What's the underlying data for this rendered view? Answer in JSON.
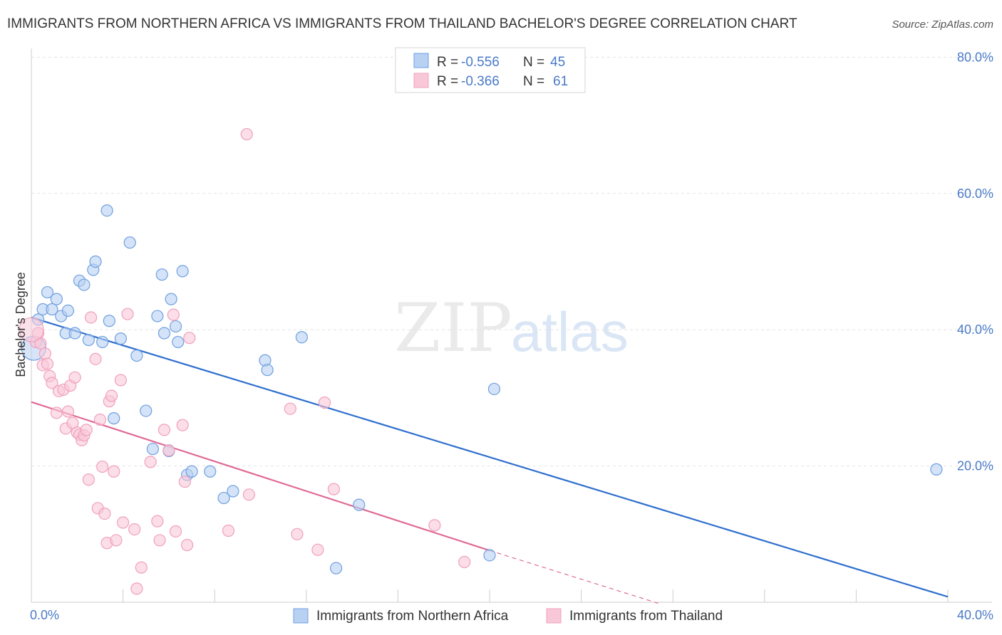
{
  "chart_data": {
    "type": "scatter",
    "title": "IMMIGRANTS FROM NORTHERN AFRICA VS IMMIGRANTS FROM THAILAND BACHELOR'S DEGREE CORRELATION CHART",
    "source": "Source: ZipAtlas.com",
    "ylabel": "Bachelor's Degree",
    "xlabel": "",
    "xlim": [
      0,
      40
    ],
    "ylim": [
      0,
      80
    ],
    "x_tick_labels": [
      "0.0%",
      "40.0%"
    ],
    "y_ticks": [
      20,
      40,
      60,
      80
    ],
    "y_tick_labels": [
      "20.0%",
      "40.0%",
      "60.0%",
      "80.0%"
    ],
    "grid": true,
    "legend": {
      "position": "top-center",
      "rows": [
        {
          "r_label": "R =",
          "r_value": "-0.556",
          "n_label": "N =",
          "n_value": "45"
        },
        {
          "r_label": "R =",
          "r_value": "-0.366",
          "n_label": "N =",
          "n_value": "61"
        }
      ]
    },
    "watermark": {
      "zip": "ZIP",
      "atlas": "atlas"
    },
    "series": [
      {
        "name": "Immigrants from Northern Africa",
        "color": "#6fa0e0",
        "fill": "#b8d0f2",
        "line_color": "#2f6fce",
        "trend": {
          "x0": 0,
          "y0": 41.8,
          "x1": 40,
          "y1": 0.8
        },
        "points": [
          [
            0.3,
            41.5
          ],
          [
            0.5,
            43.0
          ],
          [
            0.7,
            45.5
          ],
          [
            0.9,
            43.0
          ],
          [
            1.1,
            44.5
          ],
          [
            1.3,
            42.0
          ],
          [
            1.5,
            39.5
          ],
          [
            1.6,
            42.8
          ],
          [
            1.9,
            39.5
          ],
          [
            2.1,
            47.2
          ],
          [
            2.3,
            46.6
          ],
          [
            2.5,
            38.5
          ],
          [
            2.7,
            48.8
          ],
          [
            2.8,
            50.0
          ],
          [
            3.1,
            38.2
          ],
          [
            3.3,
            57.5
          ],
          [
            3.4,
            41.3
          ],
          [
            3.6,
            27.0
          ],
          [
            3.9,
            38.7
          ],
          [
            4.3,
            52.8
          ],
          [
            4.6,
            36.2
          ],
          [
            5.0,
            28.1
          ],
          [
            5.3,
            22.5
          ],
          [
            5.5,
            42.0
          ],
          [
            5.7,
            48.1
          ],
          [
            5.8,
            39.5
          ],
          [
            6.0,
            22.2
          ],
          [
            6.1,
            44.5
          ],
          [
            6.3,
            40.5
          ],
          [
            6.4,
            38.2
          ],
          [
            6.6,
            48.6
          ],
          [
            6.8,
            18.7
          ],
          [
            7.0,
            19.2
          ],
          [
            7.8,
            19.2
          ],
          [
            8.4,
            15.3
          ],
          [
            8.8,
            16.3
          ],
          [
            10.2,
            35.5
          ],
          [
            10.3,
            34.1
          ],
          [
            11.8,
            38.9
          ],
          [
            13.3,
            5.0
          ],
          [
            14.3,
            14.3
          ],
          [
            20.0,
            6.9
          ],
          [
            20.2,
            31.3
          ],
          [
            39.5,
            19.5
          ],
          [
            0.1,
            37.3
          ]
        ]
      },
      {
        "name": "Immigrants from Thailand",
        "color": "#f0a0bc",
        "fill": "#f8c8d8",
        "line_color": "#e06a96",
        "trend": {
          "x0": 0,
          "y0": 29.4,
          "x1": 20,
          "y1": 7.6
        },
        "trend_ext": {
          "x0": 20,
          "y0": 7.6,
          "x1": 27.5,
          "y1": -0.3
        },
        "points": [
          [
            0.2,
            38.2
          ],
          [
            0.3,
            39.5
          ],
          [
            0.4,
            38.0
          ],
          [
            0.5,
            34.8
          ],
          [
            0.6,
            36.5
          ],
          [
            0.7,
            35.0
          ],
          [
            0.8,
            33.2
          ],
          [
            0.9,
            32.2
          ],
          [
            1.1,
            27.8
          ],
          [
            1.2,
            31.0
          ],
          [
            1.4,
            31.2
          ],
          [
            1.5,
            25.5
          ],
          [
            1.6,
            28.0
          ],
          [
            1.7,
            31.8
          ],
          [
            1.8,
            26.3
          ],
          [
            1.9,
            33.0
          ],
          [
            2.0,
            24.9
          ],
          [
            2.1,
            24.6
          ],
          [
            2.2,
            23.8
          ],
          [
            2.3,
            24.5
          ],
          [
            2.4,
            25.3
          ],
          [
            2.5,
            18.0
          ],
          [
            2.6,
            41.8
          ],
          [
            2.8,
            35.7
          ],
          [
            2.9,
            13.8
          ],
          [
            3.0,
            26.8
          ],
          [
            3.1,
            19.9
          ],
          [
            3.2,
            13.0
          ],
          [
            3.3,
            8.7
          ],
          [
            3.4,
            29.5
          ],
          [
            3.5,
            30.3
          ],
          [
            3.6,
            19.2
          ],
          [
            3.7,
            9.1
          ],
          [
            3.9,
            32.6
          ],
          [
            4.0,
            11.7
          ],
          [
            4.2,
            42.3
          ],
          [
            4.5,
            10.7
          ],
          [
            4.8,
            5.1
          ],
          [
            4.6,
            2.0
          ],
          [
            5.2,
            20.6
          ],
          [
            5.5,
            11.9
          ],
          [
            5.6,
            9.1
          ],
          [
            5.8,
            25.3
          ],
          [
            6.0,
            22.3
          ],
          [
            6.2,
            42.2
          ],
          [
            6.3,
            10.4
          ],
          [
            6.6,
            26.0
          ],
          [
            6.7,
            17.7
          ],
          [
            6.8,
            8.4
          ],
          [
            6.9,
            38.8
          ],
          [
            8.6,
            10.5
          ],
          [
            9.4,
            68.7
          ],
          [
            9.5,
            15.8
          ],
          [
            11.3,
            28.4
          ],
          [
            11.6,
            10.0
          ],
          [
            12.5,
            7.7
          ],
          [
            12.8,
            29.3
          ],
          [
            13.2,
            16.6
          ],
          [
            17.6,
            11.3
          ],
          [
            18.9,
            5.9
          ],
          [
            0.0,
            40.0
          ]
        ]
      }
    ]
  }
}
